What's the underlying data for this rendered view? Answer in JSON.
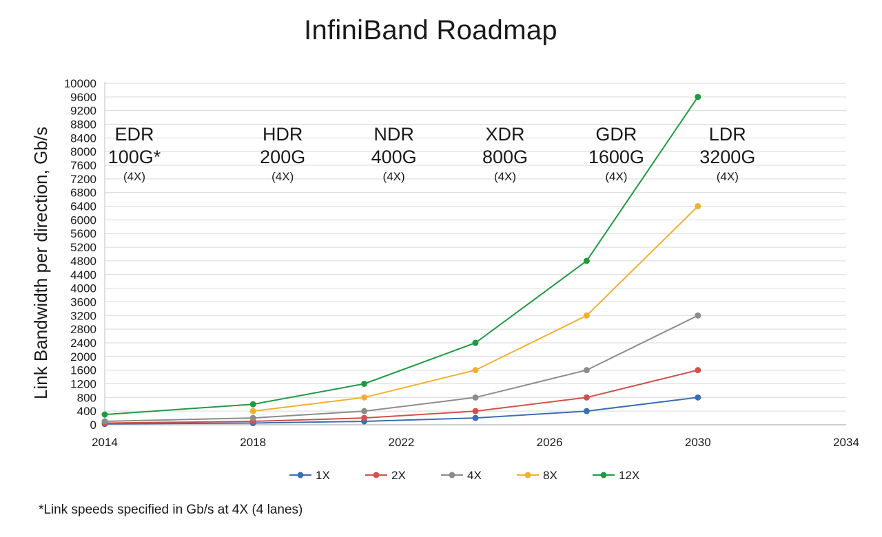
{
  "chart_data": {
    "type": "line",
    "title": "InfiniBand Roadmap",
    "ylabel": "Link Bandwidth per direction, Gb/s",
    "xlabel": "",
    "xlim": [
      2014,
      2034
    ],
    "ylim": [
      0,
      10000
    ],
    "x_ticks": [
      2014,
      2018,
      2022,
      2026,
      2030,
      2034
    ],
    "y_ticks": [
      0,
      400,
      800,
      1200,
      1600,
      2000,
      2400,
      2800,
      3200,
      3600,
      4000,
      4400,
      4800,
      5200,
      5600,
      6000,
      6400,
      6800,
      7200,
      7600,
      8000,
      8400,
      8800,
      9200,
      9600,
      10000
    ],
    "grid": true,
    "legend_position": "bottom",
    "series": [
      {
        "name": "1X",
        "color": "#3a6fb5",
        "x": [
          2014,
          2018,
          2021,
          2024,
          2027,
          2030
        ],
        "y": [
          25,
          50,
          100,
          200,
          400,
          800
        ]
      },
      {
        "name": "2X",
        "color": "#d0524a",
        "x": [
          2014,
          2018,
          2021,
          2024,
          2027,
          2030
        ],
        "y": [
          50,
          100,
          200,
          400,
          800,
          1600
        ]
      },
      {
        "name": "4X",
        "color": "#8c8c8c",
        "x": [
          2014,
          2018,
          2021,
          2024,
          2027,
          2030
        ],
        "y": [
          100,
          200,
          400,
          800,
          1600,
          3200
        ]
      },
      {
        "name": "8X",
        "color": "#f0b030",
        "x": [
          2018,
          2021,
          2024,
          2027,
          2030
        ],
        "y": [
          400,
          800,
          1600,
          3200,
          6400
        ]
      },
      {
        "name": "12X",
        "color": "#1f9a42",
        "x": [
          2014,
          2018,
          2021,
          2024,
          2027,
          2030
        ],
        "y": [
          300,
          600,
          1200,
          2400,
          4800,
          9600
        ]
      }
    ],
    "annotations": [
      {
        "x": 2014,
        "name": "EDR",
        "speed": "100G*",
        "lanes": "(4X)"
      },
      {
        "x": 2018,
        "name": "HDR",
        "speed": "200G",
        "lanes": "(4X)"
      },
      {
        "x": 2021,
        "name": "NDR",
        "speed": "400G",
        "lanes": "(4X)"
      },
      {
        "x": 2024,
        "name": "XDR",
        "speed": "800G",
        "lanes": "(4X)"
      },
      {
        "x": 2027,
        "name": "GDR",
        "speed": "1600G",
        "lanes": "(4X)"
      },
      {
        "x": 2030,
        "name": "LDR",
        "speed": "3200G",
        "lanes": "(4X)"
      }
    ],
    "footnote": "*Link speeds specified in Gb/s at 4X (4 lanes)"
  }
}
